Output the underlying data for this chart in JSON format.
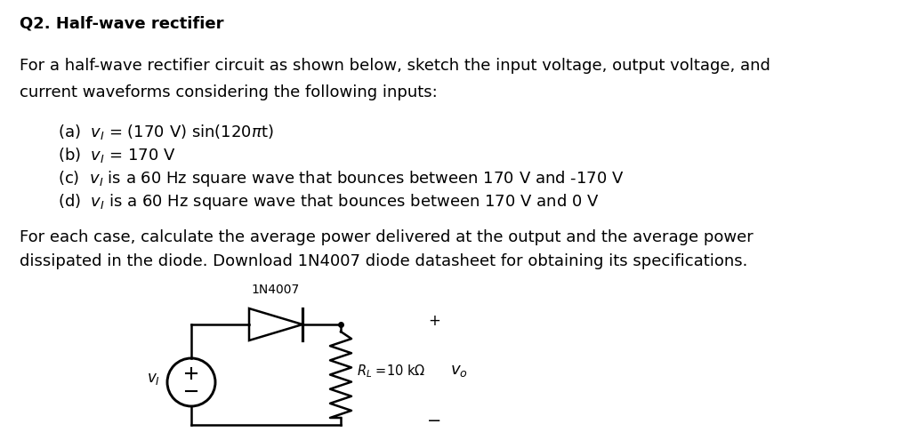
{
  "title": "Q2. Half-wave rectifier",
  "line1": "For a half-wave rectifier circuit as shown below, sketch the input voltage, output voltage, and",
  "line2": "current waveforms considering the following inputs:",
  "item_a": "(a)  $v_I$ = (170 V) sin(120$\\pi$t)",
  "item_b": "(b)  $v_I$ = 170 V",
  "item_c": "(c)  $v_I$ is a 60 Hz square wave that bounces between 170 V and -170 V",
  "item_d": "(d)  $v_I$ is a 60 Hz square wave that bounces between 170 V and 0 V",
  "para1": "For each case, calculate the average power delivered at the output and the average power",
  "para2": "dissipated in the diode. Download 1N4007 diode datasheet for obtaining its specifications.",
  "diode_label": "1N4007",
  "resistor_label": "$R_L$ =10 k$\\Omega$",
  "vi_label": "$v_I$",
  "vo_label": "$v_o$",
  "bg_color": "#ffffff",
  "text_color": "#000000",
  "font_main": 13,
  "font_bold": 13,
  "lw_circuit": 1.8
}
